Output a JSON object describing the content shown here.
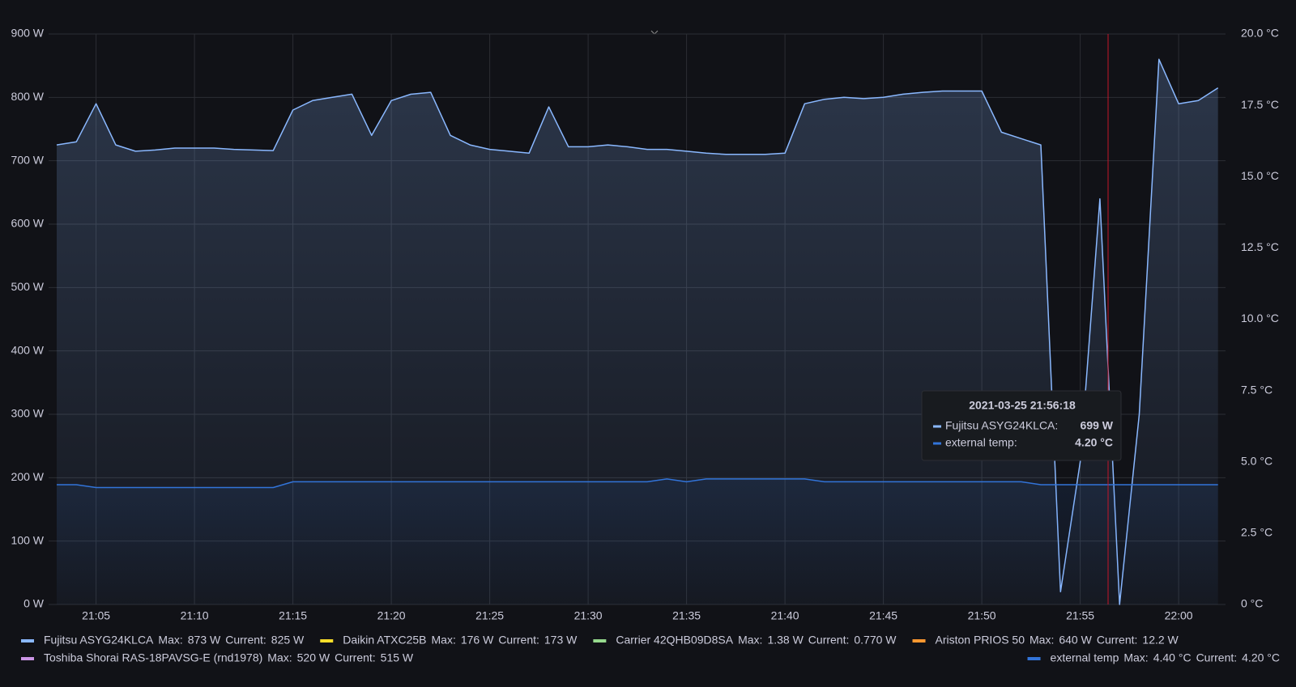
{
  "chart_data": {
    "type": "line",
    "x": [
      "21:03",
      "21:04",
      "21:05",
      "21:06",
      "21:07",
      "21:08",
      "21:09",
      "21:10",
      "21:11",
      "21:12",
      "21:13",
      "21:14",
      "21:15",
      "21:16",
      "21:17",
      "21:18",
      "21:19",
      "21:20",
      "21:21",
      "21:22",
      "21:23",
      "21:24",
      "21:25",
      "21:26",
      "21:27",
      "21:28",
      "21:29",
      "21:30",
      "21:31",
      "21:32",
      "21:33",
      "21:34",
      "21:35",
      "21:36",
      "21:37",
      "21:38",
      "21:39",
      "21:40",
      "21:41",
      "21:42",
      "21:43",
      "21:44",
      "21:45",
      "21:46",
      "21:47",
      "21:48",
      "21:49",
      "21:50",
      "21:51",
      "21:52",
      "21:53",
      "21:54",
      "21:55",
      "21:56",
      "21:57",
      "21:58",
      "21:59",
      "22:00",
      "22:01",
      "22:02"
    ],
    "ylim": [
      0,
      900
    ],
    "yticks": [
      {
        "value": 0,
        "label": "0 W"
      },
      {
        "value": 100,
        "label": "100 W"
      },
      {
        "value": 200,
        "label": "200 W"
      },
      {
        "value": 300,
        "label": "300 W"
      },
      {
        "value": 400,
        "label": "400 W"
      },
      {
        "value": 500,
        "label": "500 W"
      },
      {
        "value": 600,
        "label": "600 W"
      },
      {
        "value": 700,
        "label": "700 W"
      },
      {
        "value": 800,
        "label": "800 W"
      },
      {
        "value": 900,
        "label": "900 W"
      }
    ],
    "y2lim": [
      0,
      20
    ],
    "y2ticks": [
      {
        "value": 0,
        "label": "0 °C"
      },
      {
        "value": 2.5,
        "label": "2.5 °C"
      },
      {
        "value": 5,
        "label": "5.0 °C"
      },
      {
        "value": 7.5,
        "label": "7.5 °C"
      },
      {
        "value": 10,
        "label": "10.0 °C"
      },
      {
        "value": 12.5,
        "label": "12.5 °C"
      },
      {
        "value": 15,
        "label": "15.0 °C"
      },
      {
        "value": 17.5,
        "label": "17.5 °C"
      },
      {
        "value": 20,
        "label": "20.0 °C"
      }
    ],
    "grid": true,
    "legend_labels": {
      "max": "Max:",
      "current": "Current:"
    },
    "series": [
      {
        "name": "Fujitsu ASYG24KLCA",
        "color": "#8ab8ff",
        "max": "873 W",
        "current": "825 W",
        "values": [
          725,
          730,
          790,
          725,
          715,
          717,
          720,
          720,
          720,
          718,
          717,
          716,
          780,
          795,
          800,
          805,
          740,
          795,
          805,
          808,
          740,
          725,
          718,
          715,
          712,
          785,
          722,
          722,
          725,
          722,
          718,
          718,
          715,
          712,
          710,
          710,
          710,
          712,
          790,
          797,
          800,
          798,
          800,
          805,
          808,
          810,
          810,
          810,
          745,
          735,
          725,
          20,
          225,
          640,
          0,
          300,
          860,
          790,
          795,
          815
        ]
      },
      {
        "name": "Daikin ATXC25B",
        "color": "#fade2a",
        "max": "176 W",
        "current": "173 W"
      },
      {
        "name": "Carrier 42QHB09D8SA",
        "color": "#96d98d",
        "max": "1.38 W",
        "current": "0.770 W"
      },
      {
        "name": "Ariston PRIOS 50",
        "color": "#ff9830",
        "max": "640 W",
        "current": "12.2 W"
      },
      {
        "name": "Toshiba Shorai RAS-18PAVSG-E (rnd1978)",
        "color": "#ca95e5",
        "max": "520 W",
        "current": "515 W"
      },
      {
        "name": "external temp",
        "color": "#3274d9",
        "axis": "y2",
        "max": "4.40 °C",
        "current": "4.20 °C",
        "values": [
          4.2,
          4.2,
          4.1,
          4.1,
          4.1,
          4.1,
          4.1,
          4.1,
          4.1,
          4.1,
          4.1,
          4.1,
          4.3,
          4.3,
          4.3,
          4.3,
          4.3,
          4.3,
          4.3,
          4.3,
          4.3,
          4.3,
          4.3,
          4.3,
          4.3,
          4.3,
          4.3,
          4.3,
          4.3,
          4.3,
          4.3,
          4.4,
          4.3,
          4.4,
          4.4,
          4.4,
          4.4,
          4.4,
          4.4,
          4.3,
          4.3,
          4.3,
          4.3,
          4.3,
          4.3,
          4.3,
          4.3,
          4.3,
          4.3,
          4.3,
          4.2,
          4.2,
          4.2,
          4.2,
          4.2,
          4.2,
          4.2,
          4.2,
          4.2,
          4.2
        ]
      }
    ],
    "tooltip": {
      "title": "2021-03-25 21:56:18",
      "rows": [
        {
          "label": "Fujitsu ASYG24KLCA:",
          "value": "699 W"
        },
        {
          "label": "external temp:",
          "value": "4.20 °C"
        }
      ]
    }
  }
}
